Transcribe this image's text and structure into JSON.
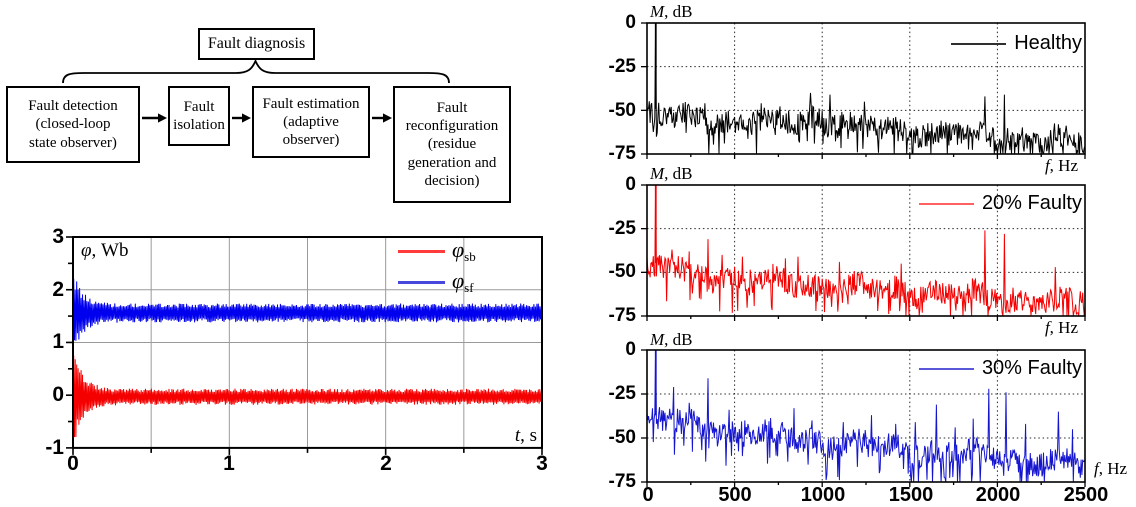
{
  "flowchart": {
    "top_box": "Fault diagnosis",
    "boxes": [
      "Fault detection\n(closed-loop\nstate observer)",
      "Fault\nisolation",
      "Fault estimation\n(adaptive\nobserver)",
      "Fault\nreconfiguration\n(residue\ngeneration and\ndecision)"
    ]
  },
  "chart_data": [
    {
      "id": "stator-flux-time-plot",
      "type": "line",
      "title": "",
      "xlabel_var": "t",
      "xlabel_unit": ", s",
      "ylabel_var": "φ",
      "ylabel_unit": ", Wb",
      "xlim": [
        0,
        3
      ],
      "ylim": [
        -1,
        3
      ],
      "xticks": [
        "0",
        "1",
        "2",
        "3"
      ],
      "yticks": [
        "3",
        "2",
        "1",
        "0",
        "-1"
      ],
      "x_gridlines": [
        0.5,
        1,
        1.5,
        2,
        2.5
      ],
      "y_gridlines": [
        0,
        1,
        2
      ],
      "grid_style": "solid",
      "legend_position": "top-right",
      "legend": [
        {
          "symbol": "φ",
          "sub": "sb",
          "color": "#ff3b3b"
        },
        {
          "symbol": "φ",
          "sub": "sf",
          "color": "#4747dd"
        }
      ],
      "series": [
        {
          "name": "phi_sb",
          "color": "#f50000",
          "description": "oscillatory transient from -0.95 up to +0.75 Wb decaying by t≈0.3 s, then dense steady band around 0 Wb",
          "steady_mean": -0.03,
          "steady_band": 0.12,
          "transient_amp": 0.82,
          "transient_min": -0.96,
          "transient_max": 0.76,
          "settle_time_s": 0.3,
          "decay_tau_s": 0.062
        },
        {
          "name": "phi_sf",
          "color": "#0000ee",
          "description": "oscillatory transient between 0.85 and 2.2 Wb decaying by t≈0.3 s, then dense steady band around 1.56 Wb",
          "steady_mean": 1.56,
          "steady_band": 0.14,
          "transient_amp": 0.68,
          "transient_min": 0.82,
          "transient_max": 2.21,
          "settle_time_s": 0.3,
          "decay_tau_s": 0.062
        }
      ]
    },
    {
      "id": "spectrum-healthy",
      "type": "line",
      "xlabel_var": "f",
      "xlabel_unit": ", Hz",
      "ylabel_var": "M",
      "ylabel_unit": ", dB",
      "xlim": [
        0,
        2500
      ],
      "ylim": [
        -75,
        0
      ],
      "yticks": [
        "0",
        "-25",
        "-50",
        "-75"
      ],
      "x_gridlines": [
        500,
        1000,
        1500,
        2000
      ],
      "y_gridlines": [
        -25,
        -50
      ],
      "grid_style": "dotted",
      "xtick_labels_visible": false,
      "legend_label": "Healthy",
      "legend_color": "#2f2f2f",
      "series": [
        {
          "name": "Healthy",
          "color": "#000000",
          "noise_floor_start_dB": -51,
          "noise_floor_end_dB": -66,
          "floor_bumps": [
            [
              1000,
              5,
              170
            ]
          ],
          "peaks": [
            [
              50,
              0
            ],
            [
              330,
              -46
            ],
            [
              650,
              -46
            ],
            [
              935,
              -40
            ],
            [
              1045,
              -41
            ],
            [
              1240,
              -45
            ],
            [
              1930,
              -42
            ],
            [
              2040,
              -41
            ]
          ]
        }
      ]
    },
    {
      "id": "spectrum-20-faulty",
      "type": "line",
      "xlabel_var": "f",
      "xlabel_unit": ", Hz",
      "ylabel_var": "M",
      "ylabel_unit": ", dB",
      "xlim": [
        0,
        2500
      ],
      "ylim": [
        -75,
        0
      ],
      "yticks": [
        "0",
        "-25",
        "-50",
        "-75"
      ],
      "x_gridlines": [
        500,
        1000,
        1500,
        2000
      ],
      "y_gridlines": [
        -25,
        -50
      ],
      "grid_style": "dotted",
      "xtick_labels_visible": false,
      "legend_label": "20% Faulty",
      "legend_color": "#ff6060",
      "series": [
        {
          "name": "20% Faulty",
          "color": "#f50000",
          "noise_floor_start_dB": -48,
          "noise_floor_end_dB": -66,
          "floor_bumps": [
            [
              150,
              3,
              120
            ]
          ],
          "peaks": [
            [
              50,
              0
            ],
            [
              145,
              -37
            ],
            [
              240,
              -38
            ],
            [
              350,
              -31
            ],
            [
              430,
              -40
            ],
            [
              545,
              -41
            ],
            [
              790,
              -42
            ],
            [
              860,
              -41
            ],
            [
              1100,
              -44
            ],
            [
              1450,
              -45
            ],
            [
              1930,
              -26
            ],
            [
              2040,
              -28
            ],
            [
              2330,
              -47
            ]
          ]
        }
      ]
    },
    {
      "id": "spectrum-30-faulty",
      "type": "line",
      "xlabel_var": "f",
      "xlabel_unit": ", Hz",
      "ylabel_var": "M",
      "ylabel_unit": ", dB",
      "xlim": [
        0,
        2500
      ],
      "ylim": [
        -75,
        0
      ],
      "yticks": [
        "0",
        "-25",
        "-50",
        "-75"
      ],
      "xticks": [
        "0",
        "500",
        "1000",
        "1500",
        "2000",
        "2500"
      ],
      "x_gridlines": [
        500,
        1000,
        1500,
        2000
      ],
      "y_gridlines": [
        -25,
        -50
      ],
      "grid_style": "dotted",
      "xtick_labels_visible": true,
      "legend_label": "30% Faulty",
      "legend_color": "#5858d8",
      "series": [
        {
          "name": "30% Faulty",
          "color": "#1515d0",
          "noise_floor_start_dB": -40,
          "noise_floor_end_dB": -64,
          "floor_bumps": [
            [
              200,
              3,
              160
            ]
          ],
          "peaks": [
            [
              50,
              0
            ],
            [
              150,
              -21
            ],
            [
              240,
              -30
            ],
            [
              350,
              -16
            ],
            [
              470,
              -34
            ],
            [
              560,
              -40
            ],
            [
              660,
              -42
            ],
            [
              840,
              -33
            ],
            [
              940,
              -40
            ],
            [
              1120,
              -41
            ],
            [
              1280,
              -37
            ],
            [
              1420,
              -42
            ],
            [
              1530,
              -41
            ],
            [
              1650,
              -31
            ],
            [
              1760,
              -44
            ],
            [
              1860,
              -39
            ],
            [
              1950,
              -22
            ],
            [
              2050,
              -24
            ],
            [
              2160,
              -42
            ],
            [
              2350,
              -35
            ],
            [
              2430,
              -45
            ]
          ]
        }
      ]
    }
  ]
}
